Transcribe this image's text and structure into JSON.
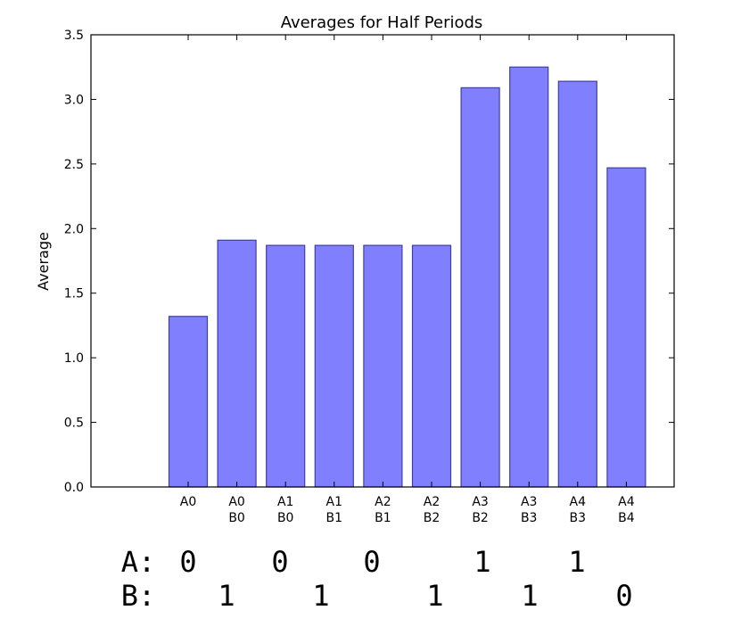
{
  "chart_data": {
    "type": "bar",
    "title": "Averages for Half Periods",
    "xlabel": "",
    "ylabel": "Average",
    "ylim": [
      0,
      3.5
    ],
    "yticks": [
      "0.0",
      "0.5",
      "1.0",
      "1.5",
      "2.0",
      "2.5",
      "3.0",
      "3.5"
    ],
    "categories": [
      [
        "A0"
      ],
      [
        "A0",
        "B0"
      ],
      [
        "A1",
        "B0"
      ],
      [
        "A1",
        "B1"
      ],
      [
        "A2",
        "B1"
      ],
      [
        "A2",
        "B2"
      ],
      [
        "A3",
        "B2"
      ],
      [
        "A3",
        "B3"
      ],
      [
        "A4",
        "B3"
      ],
      [
        "A4",
        "B4"
      ]
    ],
    "values": [
      1.32,
      1.91,
      1.87,
      1.87,
      1.87,
      1.87,
      3.09,
      3.25,
      3.14,
      2.47
    ],
    "bar_color": "#8080ff",
    "bar_edge_color": "#3f3fa0",
    "grid": false,
    "legend": "none"
  },
  "sequence": {
    "a_row": [
      "A:",
      "0",
      "0",
      "0",
      "1",
      "1"
    ],
    "b_row": [
      "B:",
      "1",
      "1",
      "1",
      "1",
      "0"
    ]
  }
}
